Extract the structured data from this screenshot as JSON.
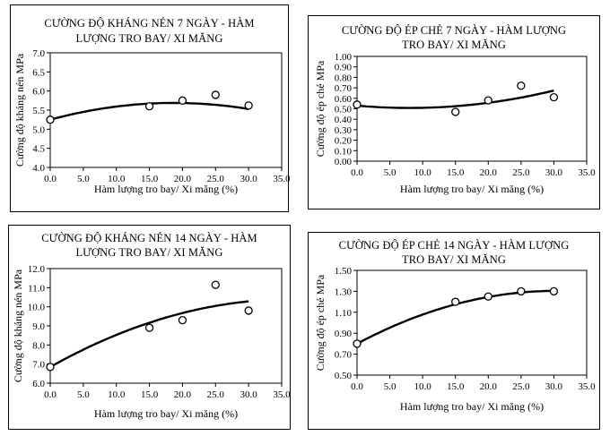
{
  "chart_data": [
    {
      "type": "scatter",
      "title_lines": [
        "CƯỜNG ĐỘ KHÁNG NÉN 7 NGÀY - HÀM",
        "LƯỢNG TRO BAY/ XI MĂNG"
      ],
      "xlabel": "Hàm lượng tro bay/ Xi măng  (%)",
      "ylabel": "Cường độ kháng nén MPa",
      "xlim": [
        0,
        35
      ],
      "xticks": [
        "0.0",
        "5.0",
        "10.0",
        "15.0",
        "20.0",
        "25.0",
        "30.0",
        "35.0"
      ],
      "ylim": [
        4.0,
        7.0
      ],
      "yticks": [
        "4.0",
        "4.5",
        "5.0",
        "5.5",
        "6.0",
        "6.5",
        "7.0"
      ],
      "x": [
        0,
        15,
        20,
        25,
        30
      ],
      "y": [
        5.25,
        5.6,
        5.75,
        5.9,
        5.62
      ],
      "trend": [
        5.25,
        0.0468,
        -0.00125
      ]
    },
    {
      "type": "scatter",
      "title_lines": [
        "CƯỜNG ĐỘ ÉP CHẺ 7 NGÀY -  HÀM LƯỢNG",
        "TRO BAY/ XI MĂNG"
      ],
      "xlabel": "Hàm lượng tro bay/ Xi măng  (%)",
      "ylabel": "Cường độ ép chẻ  MPa",
      "xlim": [
        0,
        35
      ],
      "xticks": [
        "0.0",
        "5.0",
        "10.0",
        "15.0",
        "20.0",
        "25.0",
        "30.0",
        "35.0"
      ],
      "ylim": [
        0,
        1.0
      ],
      "yticks": [
        "0.00",
        "0.10",
        "0.20",
        "0.30",
        "0.40",
        "0.50",
        "0.60",
        "0.70",
        "0.80",
        "0.90",
        "1.00"
      ],
      "x": [
        0,
        15,
        20,
        25,
        30
      ],
      "y": [
        0.54,
        0.47,
        0.58,
        0.72,
        0.61
      ],
      "trend": [
        0.53,
        -0.0055,
        0.000343
      ]
    },
    {
      "type": "scatter",
      "title_lines": [
        "CƯỜNG ĐỘ KHÁNG NÉN 14 NGÀY - HÀM",
        "LƯỢNG TRO BAY/ XI MĂNG"
      ],
      "xlabel": "Hàm lượng tro bay/ Xi măng  (%)",
      "ylabel": "Cường độ kháng nén  MPa",
      "xlim": [
        0,
        35
      ],
      "xticks": [
        "0.0",
        "5.0",
        "10.0",
        "15.0",
        "20.0",
        "25.0",
        "30.0",
        "35.0"
      ],
      "ylim": [
        6.0,
        12.0
      ],
      "yticks": [
        "6.0",
        "7.0",
        "8.0",
        "9.0",
        "10.0",
        "11.0",
        "12.0"
      ],
      "x": [
        0,
        15,
        20,
        25,
        30
      ],
      "y": [
        6.85,
        8.9,
        9.3,
        11.15,
        9.8
      ],
      "trend": [
        6.85,
        0.1943,
        -0.00266
      ]
    },
    {
      "type": "scatter",
      "title_lines": [
        "CƯỜNG ĐỘ ÉP CHẺ 14 NGÀY -  HÀM LƯỢNG",
        "TRO BAY/ XI MĂNG"
      ],
      "xlabel": "Hàm lượng tro bay/ Xi măng  (%)",
      "ylabel": "Cường độ ép chẻ  MPa",
      "xlim": [
        0,
        35
      ],
      "xticks": [
        "0.0",
        "5.0",
        "10.0",
        "15.0",
        "20.0",
        "25.0",
        "30.0",
        "35.0"
      ],
      "ylim": [
        0.5,
        1.5
      ],
      "yticks": [
        "0.50",
        "0.70",
        "0.90",
        "1.10",
        "1.30",
        "1.50"
      ],
      "x": [
        0,
        15,
        20,
        25,
        30
      ],
      "y": [
        0.8,
        1.2,
        1.25,
        1.3,
        1.3
      ],
      "trend": [
        0.8,
        0.0333,
        -0.00055
      ]
    }
  ]
}
